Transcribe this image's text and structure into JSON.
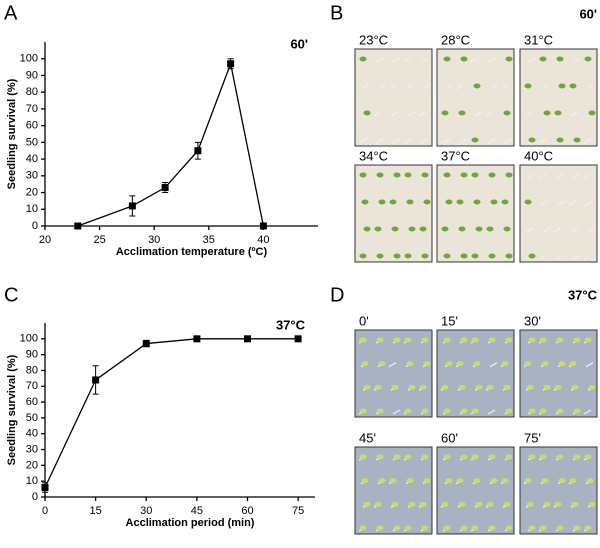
{
  "chart_data": [
    {
      "type": "line",
      "annotation": "60'",
      "xlabel": "Acclimation temperature (ºC)",
      "ylabel": "Seedling survival (%)",
      "x": [
        23,
        28,
        31,
        34,
        37,
        40
      ],
      "values": [
        0,
        12,
        23,
        45,
        97,
        0
      ],
      "errors": [
        0,
        6,
        3,
        5,
        3,
        0
      ],
      "xlim": [
        20,
        45
      ],
      "xticks": [
        20,
        25,
        30,
        35,
        40
      ],
      "ylim": [
        0,
        110
      ],
      "yticks": [
        0,
        10,
        20,
        30,
        40,
        50,
        60,
        70,
        80,
        90,
        100
      ],
      "color": "#000000"
    },
    {
      "type": "line",
      "annotation": "37°C",
      "xlabel": "Acclimation period (min)",
      "ylabel": "Seedling survival (%)",
      "x": [
        0,
        15,
        30,
        45,
        60,
        75
      ],
      "values": [
        6,
        74,
        97,
        100,
        100,
        100
      ],
      "errors": [
        3,
        9,
        2,
        0,
        0,
        0
      ],
      "xlim": [
        0,
        80
      ],
      "xticks": [
        0,
        15,
        30,
        45,
        60,
        75
      ],
      "ylim": [
        0,
        110
      ],
      "yticks": [
        0,
        10,
        20,
        30,
        40,
        50,
        60,
        70,
        80,
        90,
        100
      ],
      "color": "#000000"
    }
  ],
  "panel_labels": [
    "A",
    "B",
    "C",
    "D"
  ],
  "photos": [
    {
      "title": "60'",
      "labels": [
        "23°C",
        "28°C",
        "31°C",
        "34°C",
        "37°C",
        "40°C"
      ]
    },
    {
      "title": "37°C",
      "labels": [
        "0'",
        "15'",
        "30'",
        "45'",
        "60'",
        "75'"
      ]
    }
  ]
}
